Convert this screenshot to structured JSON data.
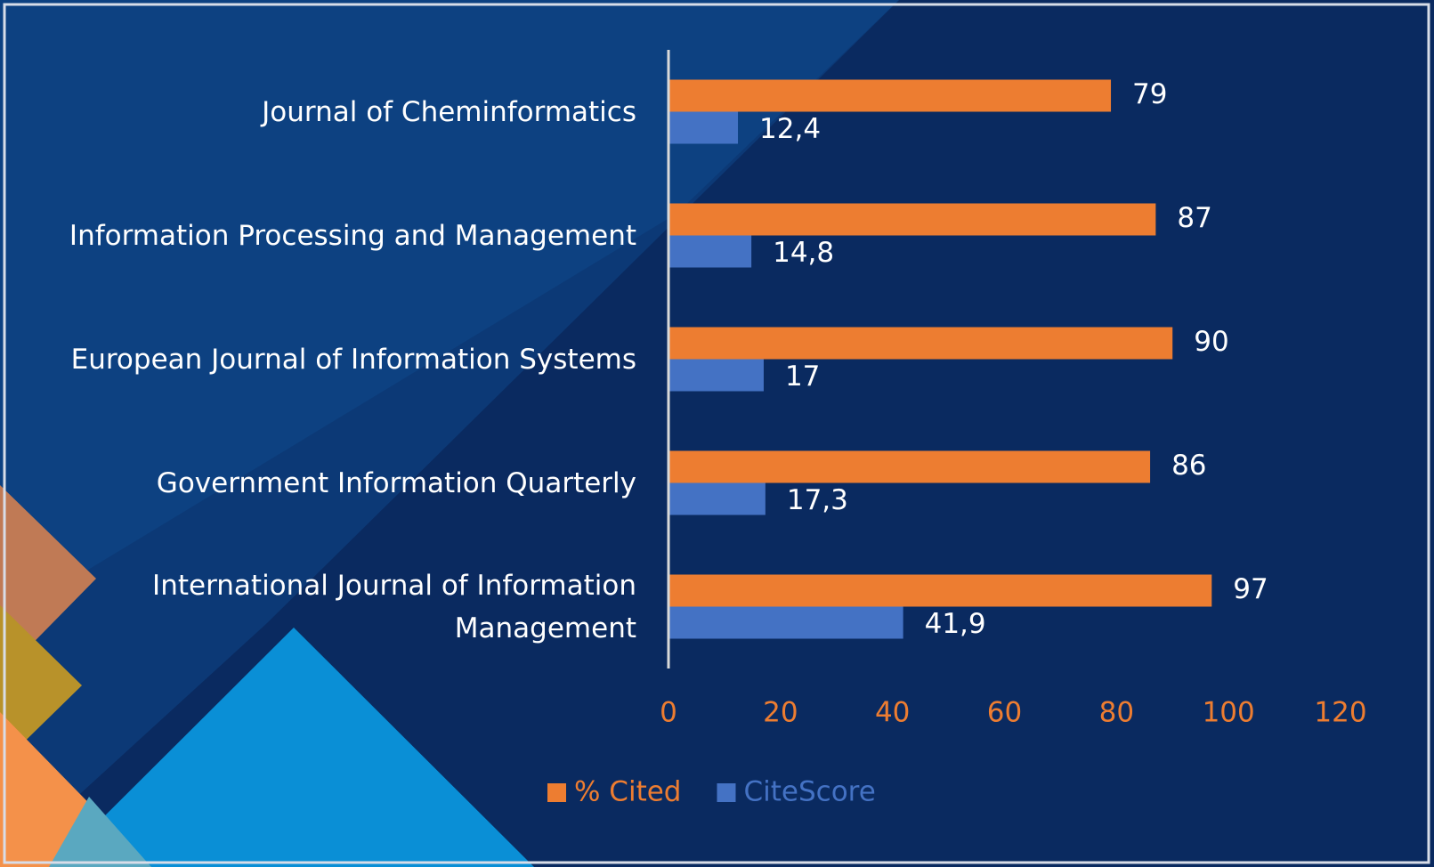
{
  "chart_data": {
    "type": "bar",
    "orientation": "horizontal",
    "categories": [
      "Journal of Cheminformatics",
      "Information Processing and Management",
      "European Journal of Information Systems",
      "Government Information Quarterly",
      "International Journal of Information Management"
    ],
    "series": [
      {
        "name": "% Cited",
        "color": "#ed7d31",
        "values": [
          79,
          87,
          90,
          86,
          97
        ]
      },
      {
        "name": "CiteScore",
        "color": "#4472c4",
        "values": [
          12.4,
          14.8,
          17,
          17.3,
          41.9
        ],
        "value_labels": [
          "12,4",
          "14,8",
          "17",
          "17,3",
          "41,9"
        ]
      }
    ],
    "xlim": [
      0,
      120
    ],
    "xticks": [
      0,
      20,
      40,
      60,
      80,
      100,
      120
    ],
    "grid": false,
    "legend": "bottom",
    "tick_color": "#ed7d31"
  }
}
